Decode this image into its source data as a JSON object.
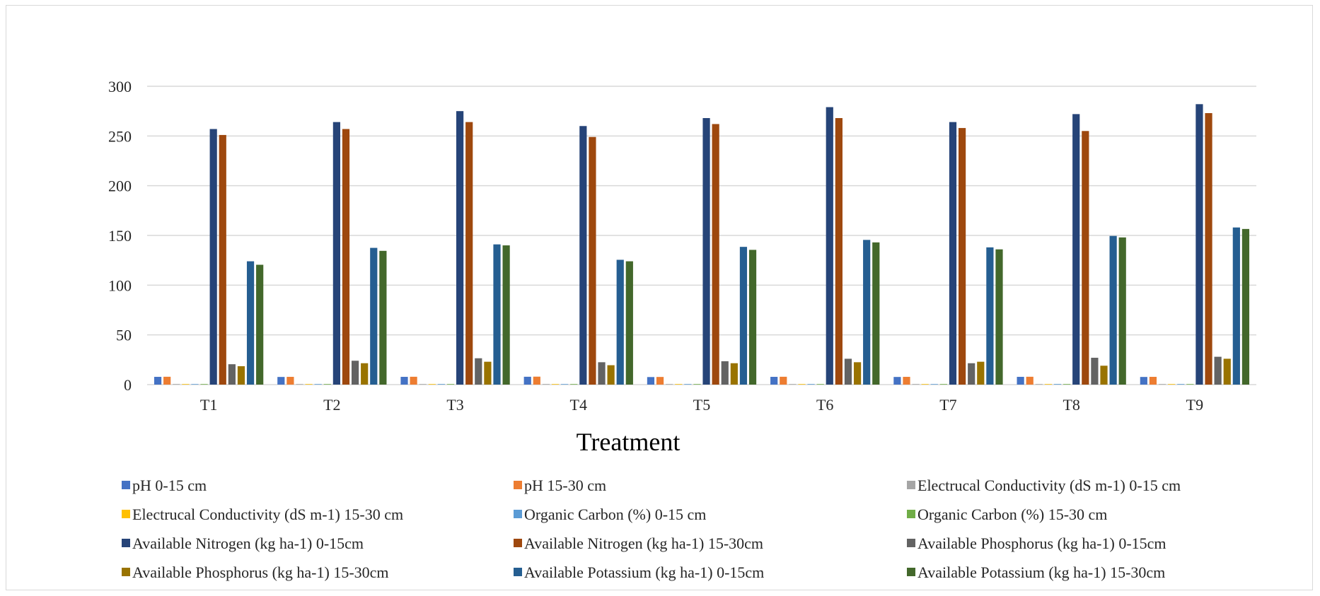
{
  "chart_data": {
    "type": "bar",
    "xlabel": "Treatment",
    "ylabel": "",
    "title": "",
    "ylim": [
      0,
      300
    ],
    "yticks": [
      0,
      50,
      100,
      150,
      200,
      250,
      300
    ],
    "grid": true,
    "legend_position": "bottom",
    "categories": [
      "T1",
      "T2",
      "T3",
      "T4",
      "T5",
      "T6",
      "T7",
      "T8",
      "T9"
    ],
    "series": [
      {
        "name": "pH 0-15 cm",
        "color": "#4472C4",
        "values": [
          7.8,
          7.7,
          7.8,
          7.9,
          7.6,
          7.8,
          7.7,
          7.8,
          7.7
        ]
      },
      {
        "name": "pH 15-30 cm",
        "color": "#ED7D31",
        "values": [
          7.9,
          7.8,
          7.9,
          8.0,
          7.7,
          7.9,
          7.8,
          7.9,
          7.8
        ]
      },
      {
        "name": "Electrucal Conductivity (dS m-1) 0-15 cm",
        "color": "#A5A5A5",
        "values": [
          0.3,
          0.3,
          0.3,
          0.3,
          0.3,
          0.3,
          0.3,
          0.3,
          0.3
        ]
      },
      {
        "name": "Electrucal Conductivity (dS m-1) 15-30 cm",
        "color": "#FFC000",
        "values": [
          0.2,
          0.2,
          0.2,
          0.2,
          0.2,
          0.2,
          0.2,
          0.2,
          0.2
        ]
      },
      {
        "name": "Organic Carbon (%) 0-15 cm",
        "color": "#5B9BD5",
        "values": [
          0.5,
          0.5,
          0.6,
          0.5,
          0.5,
          0.6,
          0.5,
          0.6,
          0.6
        ]
      },
      {
        "name": "Organic Carbon (%) 15-30 cm",
        "color": "#70AD47",
        "values": [
          0.4,
          0.4,
          0.5,
          0.4,
          0.4,
          0.5,
          0.4,
          0.5,
          0.5
        ]
      },
      {
        "name": "Available Nitrogen (kg ha-1) 0-15cm",
        "color": "#264478",
        "values": [
          257,
          264,
          275,
          260,
          268,
          279,
          264,
          272,
          282
        ]
      },
      {
        "name": "Available Nitrogen (kg ha-1) 15-30cm",
        "color": "#9E480E",
        "values": [
          251,
          257,
          264,
          249,
          262,
          268,
          258,
          255,
          273
        ]
      },
      {
        "name": "Available Phosphorus (kg ha-1) 0-15cm",
        "color": "#636363",
        "values": [
          20.5,
          24,
          26.5,
          22.5,
          23.5,
          26,
          21.5,
          27,
          28
        ]
      },
      {
        "name": "Available Phosphorus (kg ha-1) 15-30cm",
        "color": "#997300",
        "values": [
          18.5,
          21.5,
          23,
          19.5,
          21.5,
          22.5,
          23,
          19,
          26
        ]
      },
      {
        "name": "Available Potassium (kg ha-1) 0-15cm",
        "color": "#255E91",
        "values": [
          124,
          137.5,
          141,
          125.5,
          138.5,
          145.5,
          138,
          149.5,
          158
        ]
      },
      {
        "name": "Available Potassium (kg ha-1) 15-30cm",
        "color": "#43682B",
        "values": [
          120.5,
          134.5,
          140,
          124,
          135.5,
          143,
          136,
          148,
          156.5
        ]
      }
    ]
  }
}
